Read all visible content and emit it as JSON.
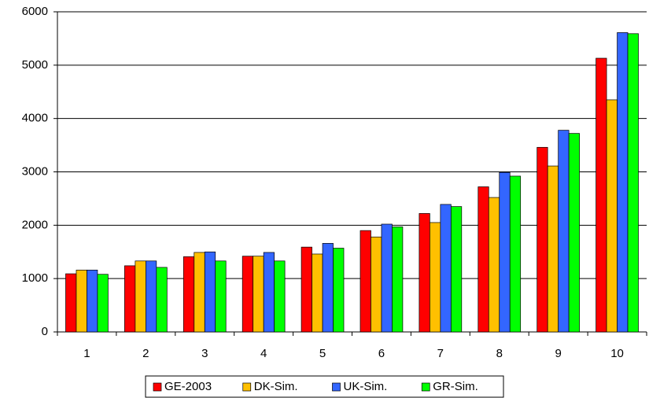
{
  "chart_data": {
    "type": "bar",
    "categories": [
      "1",
      "2",
      "3",
      "4",
      "5",
      "6",
      "7",
      "8",
      "9",
      "10"
    ],
    "series": [
      {
        "name": "GE-2003",
        "color": "#ff0000",
        "values": [
          1090,
          1240,
          1410,
          1420,
          1590,
          1900,
          2220,
          2720,
          3460,
          5130
        ]
      },
      {
        "name": "DK-Sim.",
        "color": "#ffc000",
        "values": [
          1160,
          1330,
          1490,
          1420,
          1460,
          1780,
          2050,
          2520,
          3110,
          4350
        ]
      },
      {
        "name": "UK-Sim.",
        "color": "#3366ff",
        "values": [
          1160,
          1330,
          1500,
          1490,
          1660,
          2020,
          2390,
          2990,
          3780,
          5610
        ]
      },
      {
        "name": "GR-Sim.",
        "color": "#00ff00",
        "values": [
          1080,
          1210,
          1330,
          1330,
          1570,
          1970,
          2350,
          2920,
          3720,
          5590
        ]
      }
    ],
    "ylim": [
      0,
      6000
    ],
    "yticks": [
      0,
      1000,
      2000,
      3000,
      4000,
      5000,
      6000
    ],
    "grid": true,
    "legend": "bottom"
  }
}
